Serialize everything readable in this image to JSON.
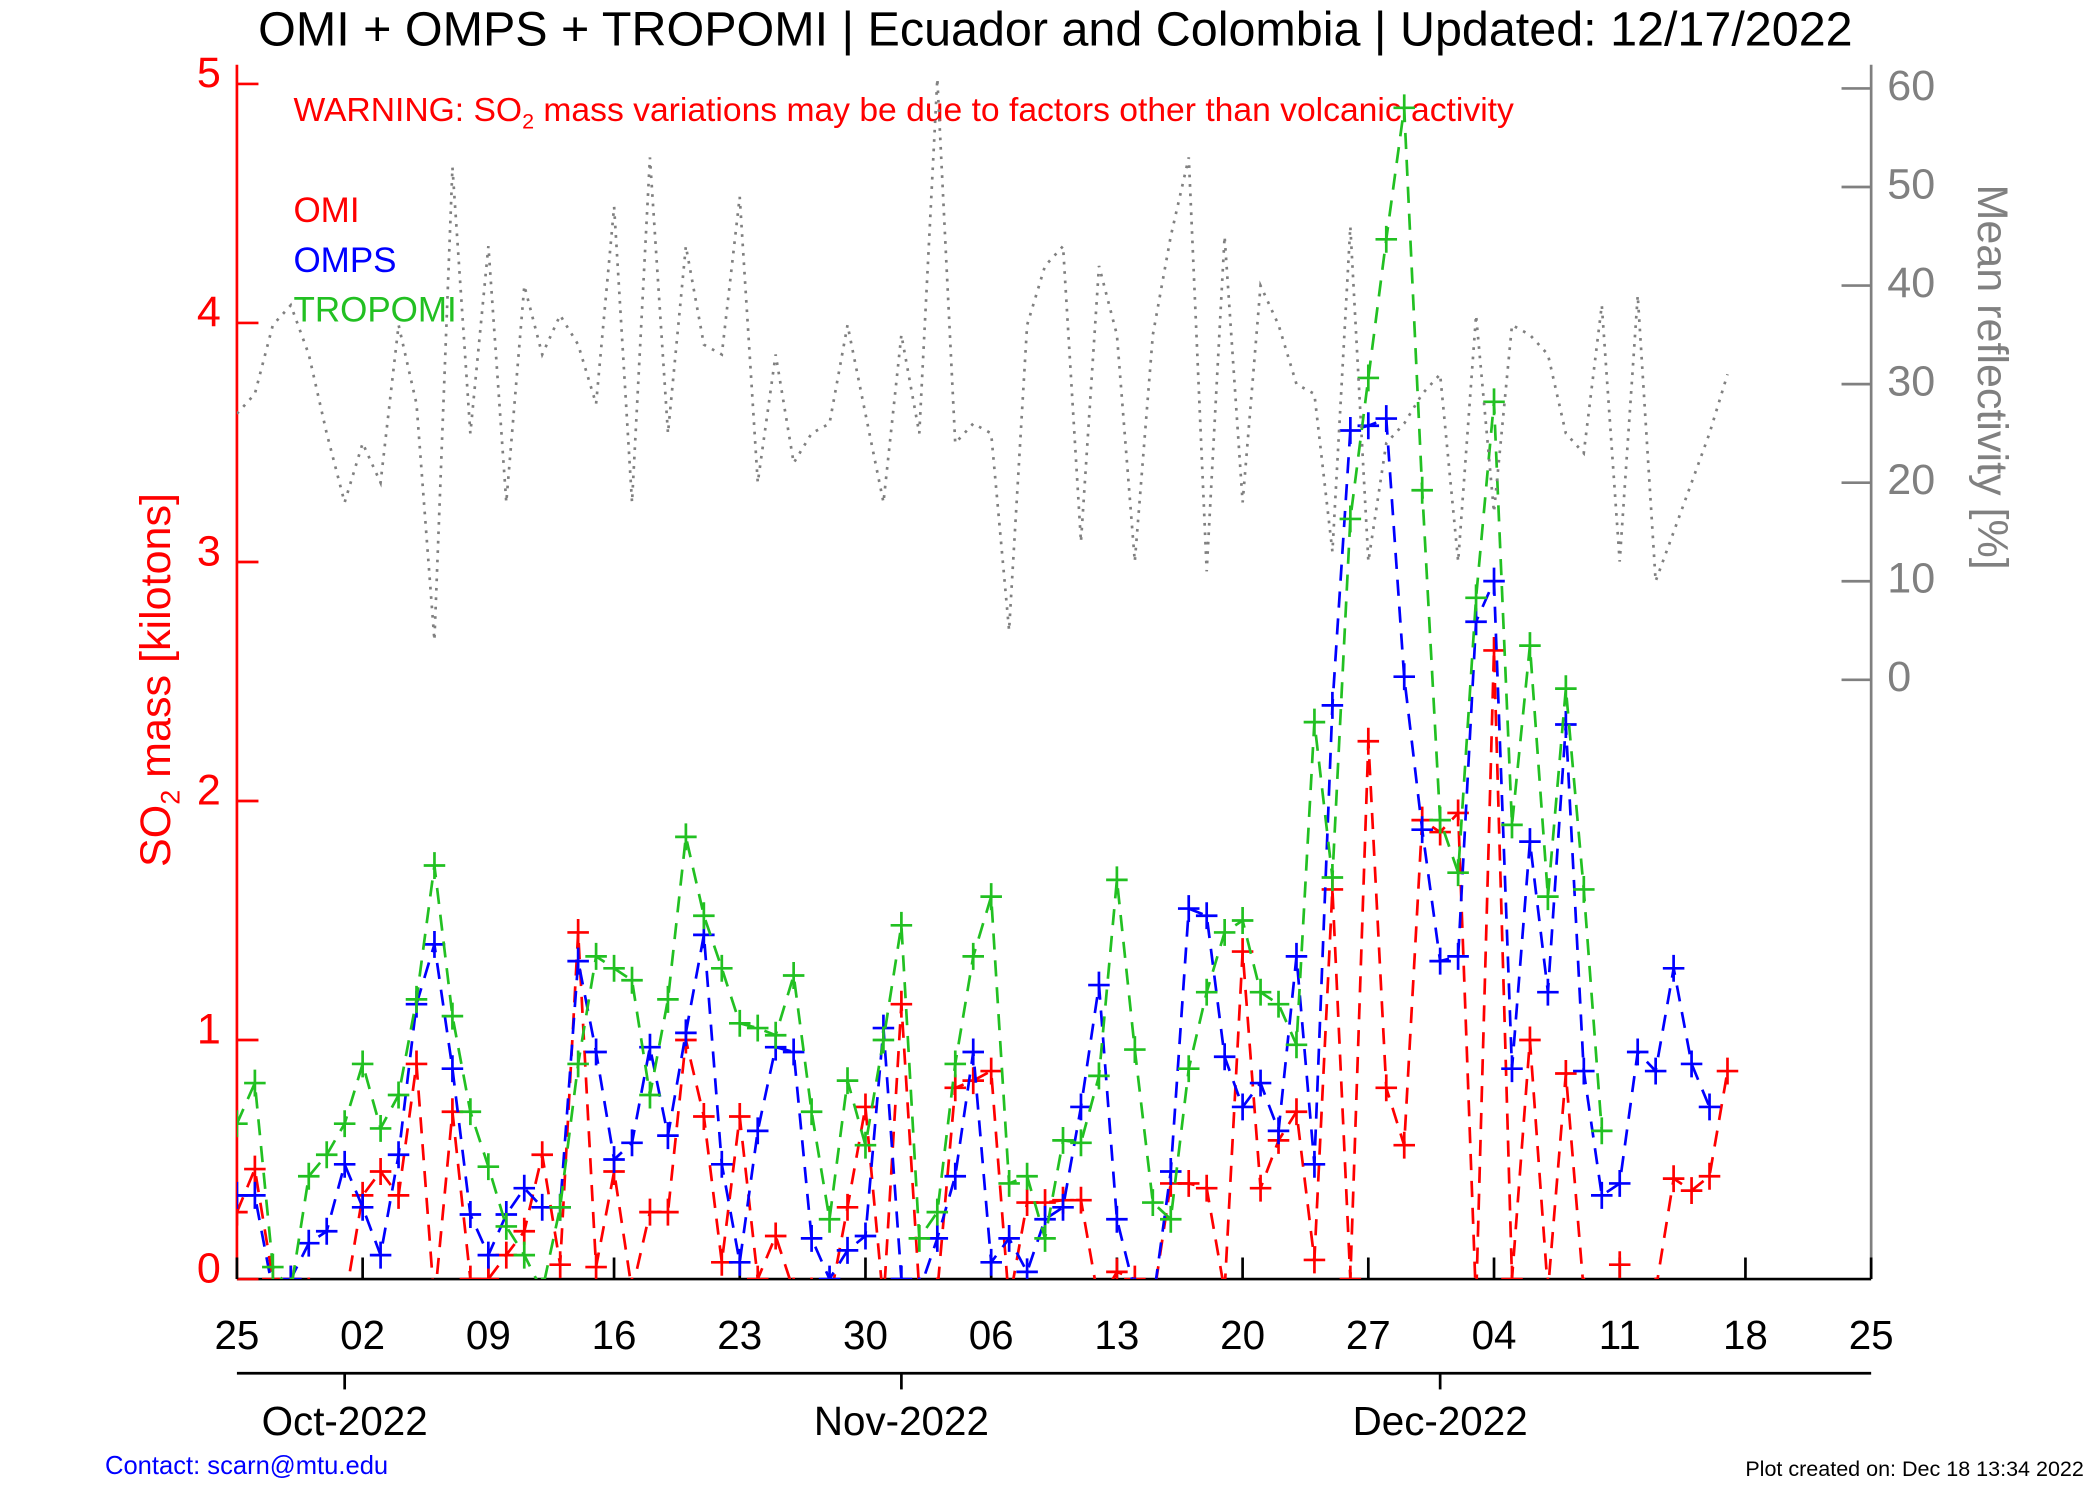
{
  "chart_data": {
    "type": "line",
    "title": "OMI + OMPS + TROPOMI | Ecuador and Colombia | Updated: 12/17/2022",
    "warning": {
      "prefix": "WARNING: SO",
      "subscript": "2",
      "suffix": " mass variations may be due to factors other than volcanic activity"
    },
    "ylabel": {
      "prefix": "SO",
      "subscript": "2",
      "suffix": " mass [kilotons]"
    },
    "y2label": "Mean reflectivity [%]",
    "contact": "Contact: scarn@mtu.edu",
    "created": "Plot created on: Dec 18 13:34 2022",
    "xlim": [
      "2022-09-25",
      "2022-12-25"
    ],
    "xticks": [
      {
        "value": "2022-09-25",
        "label": "25"
      },
      {
        "value": "2022-10-02",
        "label": "02"
      },
      {
        "value": "2022-10-09",
        "label": "09"
      },
      {
        "value": "2022-10-16",
        "label": "16"
      },
      {
        "value": "2022-10-23",
        "label": "23"
      },
      {
        "value": "2022-10-30",
        "label": "30"
      },
      {
        "value": "2022-11-06",
        "label": "06"
      },
      {
        "value": "2022-11-13",
        "label": "13"
      },
      {
        "value": "2022-11-20",
        "label": "20"
      },
      {
        "value": "2022-11-27",
        "label": "27"
      },
      {
        "value": "2022-12-04",
        "label": "04"
      },
      {
        "value": "2022-12-11",
        "label": "11"
      },
      {
        "value": "2022-12-18",
        "label": "18"
      },
      {
        "value": "2022-12-25",
        "label": "25"
      }
    ],
    "month_ticks": [
      {
        "value": "2022-10-01",
        "label": "Oct-2022"
      },
      {
        "value": "2022-11-01",
        "label": "Nov-2022"
      },
      {
        "value": "2022-12-01",
        "label": "Dec-2022"
      }
    ],
    "ylim": [
      0,
      5.08
    ],
    "yticks": [
      0,
      1,
      2,
      3,
      4,
      5
    ],
    "y2lim": [
      -60.8,
      62.4
    ],
    "y2ticks": [
      0,
      10,
      20,
      30,
      40,
      50,
      60
    ],
    "x": [
      "2022-09-25",
      "2022-09-26",
      "2022-09-27",
      "2022-09-28",
      "2022-09-29",
      "2022-09-30",
      "2022-10-01",
      "2022-10-02",
      "2022-10-03",
      "2022-10-04",
      "2022-10-05",
      "2022-10-06",
      "2022-10-07",
      "2022-10-08",
      "2022-10-09",
      "2022-10-10",
      "2022-10-11",
      "2022-10-12",
      "2022-10-13",
      "2022-10-14",
      "2022-10-15",
      "2022-10-16",
      "2022-10-17",
      "2022-10-18",
      "2022-10-19",
      "2022-10-20",
      "2022-10-21",
      "2022-10-22",
      "2022-10-23",
      "2022-10-24",
      "2022-10-25",
      "2022-10-26",
      "2022-10-27",
      "2022-10-28",
      "2022-10-29",
      "2022-10-30",
      "2022-10-31",
      "2022-11-01",
      "2022-11-02",
      "2022-11-03",
      "2022-11-04",
      "2022-11-05",
      "2022-11-06",
      "2022-11-07",
      "2022-11-08",
      "2022-11-09",
      "2022-11-10",
      "2022-11-11",
      "2022-11-12",
      "2022-11-13",
      "2022-11-14",
      "2022-11-15",
      "2022-11-16",
      "2022-11-17",
      "2022-11-18",
      "2022-11-19",
      "2022-11-20",
      "2022-11-21",
      "2022-11-22",
      "2022-11-23",
      "2022-11-24",
      "2022-11-25",
      "2022-11-26",
      "2022-11-27",
      "2022-11-28",
      "2022-11-29",
      "2022-11-30",
      "2022-12-01",
      "2022-12-02",
      "2022-12-03",
      "2022-12-04",
      "2022-12-05",
      "2022-12-06",
      "2022-12-07",
      "2022-12-08",
      "2022-12-09",
      "2022-12-10",
      "2022-12-11",
      "2022-12-12",
      "2022-12-13",
      "2022-12-14",
      "2022-12-15",
      "2022-12-16",
      "2022-12-17"
    ],
    "series": [
      {
        "name": "OMI",
        "color": "#ff0000",
        "values": [
          0.28,
          0.46,
          0.0,
          0.0,
          -0.05,
          -0.1,
          -0.1,
          0.35,
          0.45,
          0.35,
          0.9,
          -0.1,
          0.7,
          0.0,
          0.0,
          0.1,
          0.2,
          0.52,
          0.06,
          1.45,
          0.05,
          0.45,
          -0.05,
          0.28,
          0.28,
          1.0,
          0.68,
          0.07,
          0.68,
          0.0,
          0.18,
          -0.05,
          -0.05,
          -0.1,
          0.3,
          0.72,
          -0.1,
          1.15,
          -0.05,
          -0.05,
          0.8,
          0.83,
          0.87,
          -0.1,
          0.32,
          0.32,
          0.33,
          0.33,
          -0.1,
          0.03,
          0.0,
          -0.1,
          0.4,
          0.4,
          0.38,
          -0.05,
          1.37,
          0.38,
          0.58,
          0.7,
          0.08,
          1.63,
          0.0,
          2.25,
          0.8,
          0.56,
          1.92,
          1.87,
          1.95,
          -0.1,
          2.63,
          0.0,
          1.0,
          -0.05,
          0.86,
          -0.05,
          null,
          0.06,
          null,
          -0.05,
          0.42,
          0.37,
          0.43,
          0.87
        ]
      },
      {
        "name": "OMPS",
        "color": "#0000ff",
        "values": [
          0.35,
          0.35,
          -0.05,
          0.0,
          0.15,
          0.2,
          0.48,
          0.3,
          0.1,
          0.52,
          1.15,
          1.4,
          0.88,
          0.27,
          0.1,
          0.27,
          0.38,
          0.3,
          0.3,
          1.33,
          0.95,
          0.5,
          0.57,
          0.97,
          0.6,
          1.03,
          1.44,
          0.48,
          0.07,
          0.62,
          0.97,
          0.95,
          0.17,
          0.0,
          0.12,
          0.18,
          1.05,
          0.0,
          -0.05,
          0.17,
          0.43,
          0.95,
          0.07,
          0.17,
          0.03,
          0.25,
          0.3,
          0.72,
          1.23,
          0.25,
          -0.05,
          -0.1,
          0.45,
          1.55,
          1.52,
          0.93,
          0.72,
          0.82,
          0.62,
          1.35,
          0.48,
          2.4,
          3.55,
          3.57,
          3.6,
          2.52,
          1.88,
          1.33,
          1.35,
          2.75,
          2.92,
          0.88,
          1.83,
          1.2,
          2.32,
          0.87,
          0.35,
          0.4,
          0.95,
          0.87,
          1.3,
          0.9,
          0.72,
          null
        ]
      },
      {
        "name": "TROPOMI",
        "color": "#22c022",
        "values": [
          0.65,
          0.82,
          0.05,
          -0.05,
          0.43,
          0.52,
          0.65,
          0.9,
          0.63,
          0.77,
          1.17,
          1.73,
          1.1,
          0.7,
          0.47,
          0.22,
          0.1,
          -0.05,
          0.3,
          0.9,
          1.35,
          1.3,
          1.25,
          0.77,
          1.17,
          1.85,
          1.52,
          1.3,
          1.07,
          1.05,
          1.02,
          1.27,
          0.7,
          0.25,
          0.83,
          0.56,
          1.0,
          1.48,
          0.17,
          0.28,
          0.9,
          1.35,
          1.6,
          0.4,
          0.43,
          0.17,
          0.58,
          0.57,
          0.85,
          1.67,
          0.96,
          0.32,
          0.25,
          0.88,
          1.2,
          1.45,
          1.5,
          1.2,
          1.15,
          0.98,
          2.33,
          1.68,
          3.18,
          3.77,
          4.35,
          4.9,
          3.3,
          1.92,
          1.7,
          2.85,
          3.67,
          1.9,
          2.65,
          1.6,
          2.47,
          1.63,
          0.62,
          null,
          null,
          null,
          null,
          null,
          null,
          null
        ]
      },
      {
        "color": "#808080",
        "axis": "y2",
        "values": [
          27,
          29,
          36,
          38,
          33,
          25,
          18,
          24,
          20,
          36,
          28,
          4,
          52,
          25,
          44,
          18,
          40,
          33,
          37,
          34,
          28,
          48,
          18,
          53,
          25,
          44,
          34,
          33,
          49,
          20,
          33,
          22,
          25,
          26,
          36,
          27,
          18,
          35,
          25,
          61,
          24,
          26,
          25,
          5,
          36,
          42,
          44,
          14,
          42,
          35,
          12,
          35,
          45,
          53,
          11,
          45,
          18,
          40,
          36,
          30,
          29,
          13,
          46,
          12,
          24,
          26,
          29,
          31,
          12,
          37,
          17,
          36,
          35,
          33,
          25,
          23,
          38,
          12,
          39,
          10,
          15,
          20,
          25,
          31
        ]
      }
    ]
  }
}
